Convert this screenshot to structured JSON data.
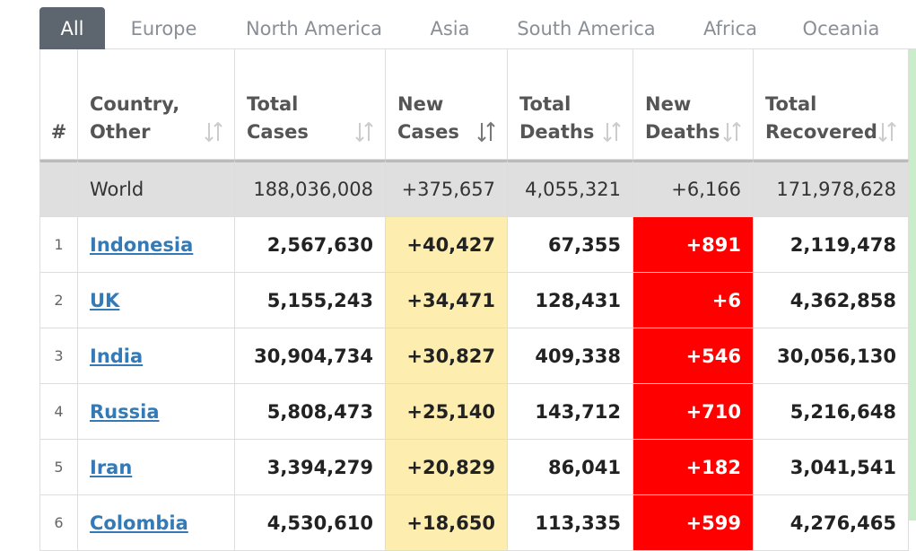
{
  "tabs": [
    "All",
    "Europe",
    "North America",
    "Asia",
    "South America",
    "Africa",
    "Oceania"
  ],
  "table": {
    "headers": [
      [
        "#"
      ],
      [
        "Country,",
        "Other"
      ],
      [
        "Total",
        "Cases"
      ],
      [
        "New",
        "Cases"
      ],
      [
        "Total",
        "Deaths"
      ],
      [
        "New",
        "Deaths"
      ],
      [
        "Total",
        "Recovered"
      ]
    ],
    "world": [
      "",
      "World",
      "188,036,008",
      "+375,657",
      "4,055,321",
      "+6,166",
      "171,978,628"
    ],
    "rows": [
      [
        "1",
        "Indonesia",
        "2,567,630",
        "+40,427",
        "67,355",
        "+891",
        "2,119,478"
      ],
      [
        "2",
        "UK",
        "5,155,243",
        "+34,471",
        "128,431",
        "+6",
        "4,362,858"
      ],
      [
        "3",
        "India",
        "30,904,734",
        "+30,827",
        "409,338",
        "+546",
        "30,056,130"
      ],
      [
        "4",
        "Russia",
        "5,808,473",
        "+25,140",
        "143,712",
        "+710",
        "5,216,648"
      ],
      [
        "5",
        "Iran",
        "3,394,279",
        "+20,829",
        "86,041",
        "+182",
        "3,041,541"
      ],
      [
        "6",
        "Colombia",
        "4,530,610",
        "+18,650",
        "113,335",
        "+599",
        "4,276,465"
      ]
    ]
  }
}
